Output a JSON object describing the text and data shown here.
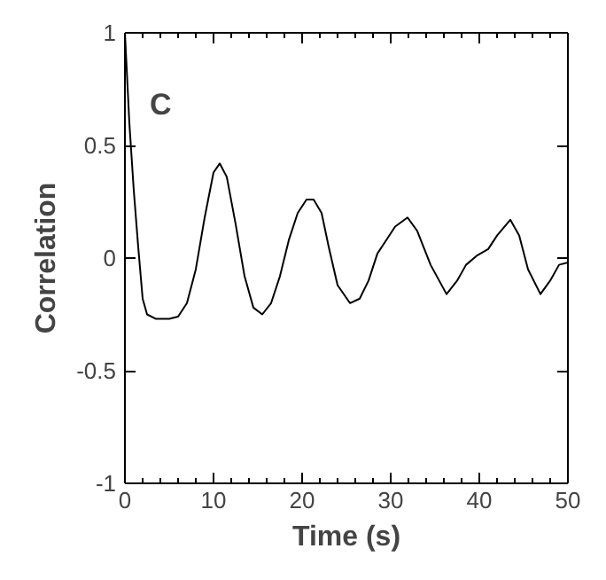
{
  "chart_data": {
    "type": "line",
    "xlabel": "Time (s)",
    "ylabel": "Correlation",
    "annotations": [
      "C"
    ],
    "x": [
      0,
      0.5,
      1,
      1.5,
      2,
      2.5,
      3.5,
      5,
      6,
      7,
      8,
      9,
      10,
      10.7,
      11.5,
      12.5,
      13.5,
      14.5,
      15.5,
      16.5,
      17.5,
      18.5,
      19.5,
      20.5,
      21.3,
      22.2,
      23,
      24,
      25.4,
      26.5,
      27.5,
      28.5,
      29.5,
      30.5,
      31.9,
      33,
      34.5,
      36.3,
      37.5,
      38.5,
      39.7,
      41,
      42,
      43.5,
      44.5,
      45.5,
      46.9,
      48,
      49,
      50
    ],
    "series": [
      {
        "color": "#000000",
        "values": [
          1,
          0.6,
          0.3,
          0.05,
          -0.18,
          -0.25,
          -0.27,
          -0.27,
          -0.26,
          -0.2,
          -0.05,
          0.18,
          0.38,
          0.42,
          0.36,
          0.15,
          -0.08,
          -0.22,
          -0.25,
          -0.2,
          -0.08,
          0.08,
          0.2,
          0.26,
          0.26,
          0.2,
          0.05,
          -0.12,
          -0.2,
          -0.18,
          -0.1,
          0.02,
          0.08,
          0.14,
          0.18,
          0.12,
          -0.03,
          -0.16,
          -0.1,
          -0.03,
          0.01,
          0.04,
          0.1,
          0.17,
          0.1,
          -0.05,
          -0.16,
          -0.1,
          -0.03,
          -0.02
        ]
      }
    ],
    "xlim": [
      0,
      50
    ],
    "ylim": [
      -1,
      1
    ],
    "xticks": [
      0,
      10,
      20,
      30,
      40,
      50
    ],
    "yticks": [
      -1,
      -0.5,
      0,
      0.5,
      1
    ],
    "grid": false
  }
}
